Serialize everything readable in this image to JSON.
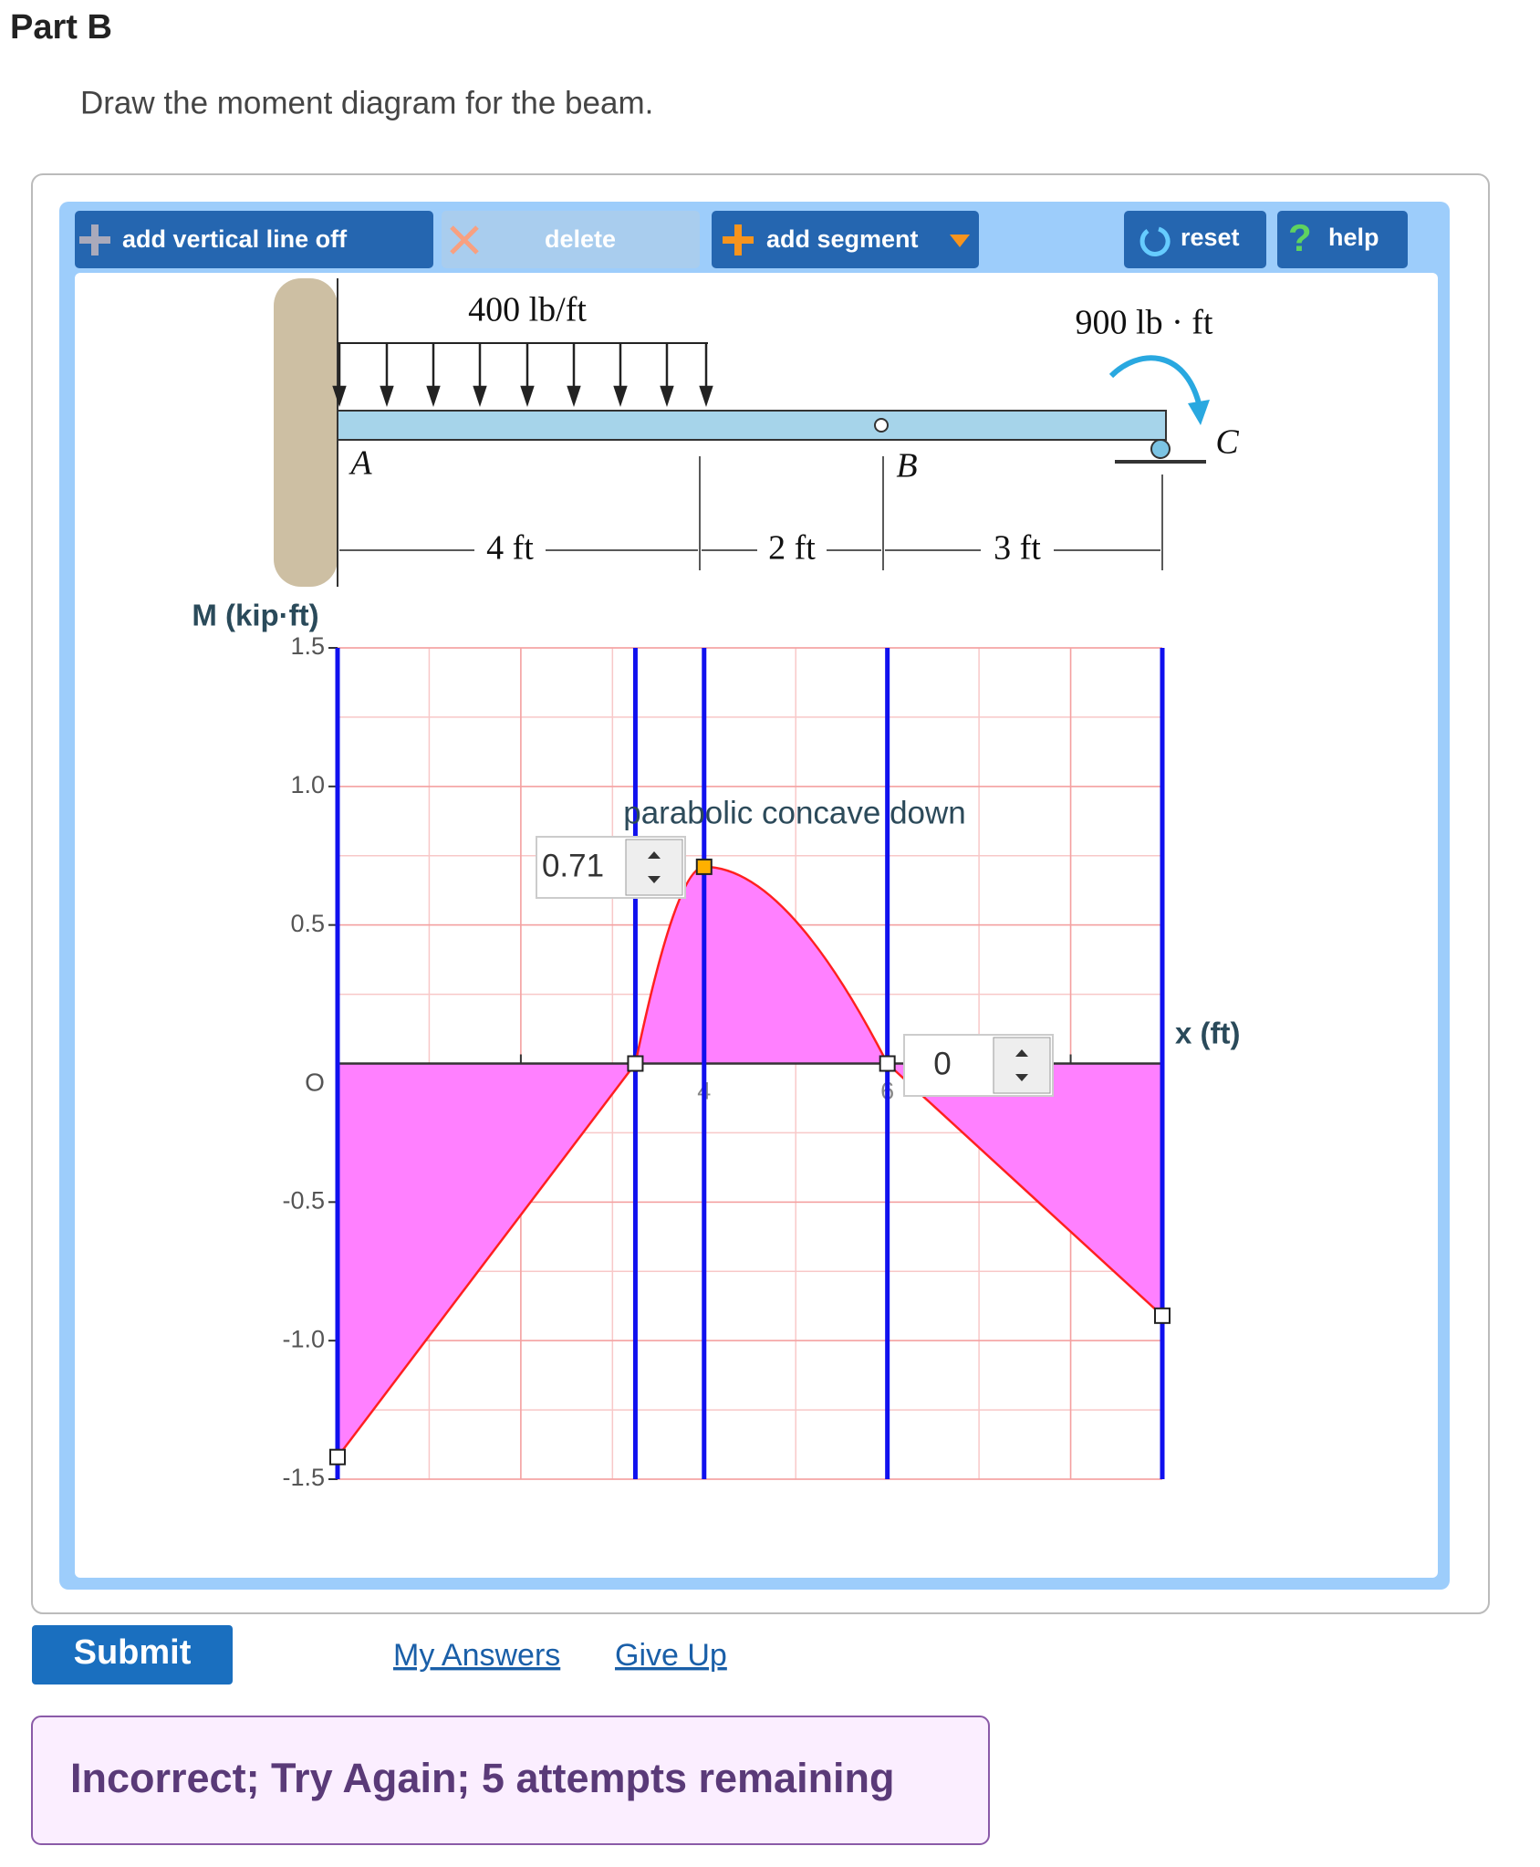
{
  "header": {
    "title": "Part B",
    "prompt": "Draw the moment diagram for the beam."
  },
  "toolbar": {
    "add_vertical_line": "add vertical line off",
    "delete": "delete",
    "add_segment": "add segment",
    "reset": "reset",
    "help": "help"
  },
  "beam": {
    "load": "400 lb/ft",
    "moment": "900 lb · ft",
    "points": [
      "A",
      "B",
      "C"
    ],
    "spans": [
      "4 ft",
      "2 ft",
      "3 ft"
    ]
  },
  "chart_data": {
    "type": "line",
    "y_label": "M (kip·ft)",
    "x_label": "x (ft)",
    "origin_label": "O",
    "annotation": "parabolic concave down",
    "x": [
      0,
      3.25,
      4,
      6,
      9
    ],
    "values": [
      -1.42,
      0,
      0.71,
      0,
      -0.91
    ],
    "segments": [
      "linear",
      "parabolic",
      "parabolic",
      "linear"
    ],
    "color": "#ff2020",
    "fill": "#ff80ff",
    "line_color": "#1010ee",
    "xlim": [
      0,
      9
    ],
    "ylim": [
      -1.5,
      1.5
    ],
    "xticks": [
      2,
      4,
      6,
      8
    ],
    "yticks": [
      {
        "value": 1.5,
        "label": "1.5"
      },
      {
        "value": 1,
        "label": "1.0"
      },
      {
        "value": 0.5,
        "label": "0.5"
      },
      {
        "value": -0.5,
        "label": "-0.5"
      },
      {
        "value": -1,
        "label": "-1.0"
      },
      {
        "value": -1.5,
        "label": "-1.5"
      }
    ],
    "grid": true
  },
  "actions": {
    "submit": "Submit",
    "my_answers": "My Answers",
    "give_up": "Give Up"
  },
  "feedback": "Incorrect; Try Again; 5 attempts remaining"
}
